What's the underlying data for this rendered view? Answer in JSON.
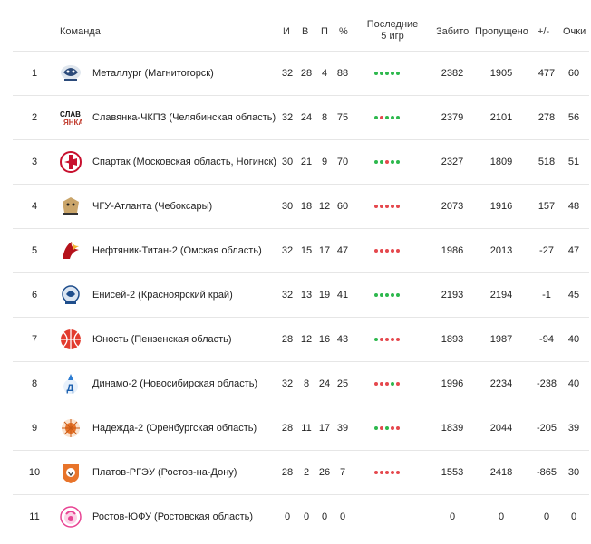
{
  "header": {
    "team": "Команда",
    "games": "И",
    "wins": "В",
    "losses": "П",
    "pct": "%",
    "last5_line1": "Последние",
    "last5_line2": "5 игр",
    "scored": "Забито",
    "conceded": "Пропущено",
    "diff": "+/-",
    "points": "Очки"
  },
  "colors": {
    "win": "#2db84d",
    "loss": "#e5484d"
  },
  "rows": [
    {
      "rank": "1",
      "team": "Металлург (Магнитогорск)",
      "logo": "metallurg-logo",
      "g": "32",
      "w": "28",
      "l": "4",
      "pct": "88",
      "last5": [
        "W",
        "W",
        "W",
        "W",
        "W"
      ],
      "scored": "2382",
      "conceded": "1905",
      "diff": "477",
      "pts": "60"
    },
    {
      "rank": "2",
      "team": "Славянка-ЧКПЗ (Челябинская область)",
      "logo": "slavyanka-logo",
      "g": "32",
      "w": "24",
      "l": "8",
      "pct": "75",
      "last5": [
        "W",
        "L",
        "W",
        "W",
        "W"
      ],
      "scored": "2379",
      "conceded": "2101",
      "diff": "278",
      "pts": "56"
    },
    {
      "rank": "3",
      "team": "Спартак (Московская область, Ногинск)",
      "logo": "spartak-logo",
      "g": "30",
      "w": "21",
      "l": "9",
      "pct": "70",
      "last5": [
        "W",
        "W",
        "L",
        "W",
        "W"
      ],
      "scored": "2327",
      "conceded": "1809",
      "diff": "518",
      "pts": "51"
    },
    {
      "rank": "4",
      "team": "ЧГУ-Атланта (Чебоксары)",
      "logo": "atlanta-logo",
      "g": "30",
      "w": "18",
      "l": "12",
      "pct": "60",
      "last5": [
        "L",
        "L",
        "L",
        "L",
        "L"
      ],
      "scored": "2073",
      "conceded": "1916",
      "diff": "157",
      "pts": "48"
    },
    {
      "rank": "5",
      "team": "Нефтяник-Титан-2 (Омская область)",
      "logo": "neftyanik-logo",
      "g": "32",
      "w": "15",
      "l": "17",
      "pct": "47",
      "last5": [
        "L",
        "L",
        "L",
        "L",
        "L"
      ],
      "scored": "1986",
      "conceded": "2013",
      "diff": "-27",
      "pts": "47"
    },
    {
      "rank": "6",
      "team": "Енисей-2 (Красноярский край)",
      "logo": "enisey-logo",
      "g": "32",
      "w": "13",
      "l": "19",
      "pct": "41",
      "last5": [
        "W",
        "W",
        "W",
        "W",
        "W"
      ],
      "scored": "2193",
      "conceded": "2194",
      "diff": "-1",
      "pts": "45"
    },
    {
      "rank": "7",
      "team": "Юность (Пензенская область)",
      "logo": "yunost-logo",
      "g": "28",
      "w": "12",
      "l": "16",
      "pct": "43",
      "last5": [
        "W",
        "L",
        "L",
        "L",
        "L"
      ],
      "scored": "1893",
      "conceded": "1987",
      "diff": "-94",
      "pts": "40"
    },
    {
      "rank": "8",
      "team": "Динамо-2 (Новосибирская область)",
      "logo": "dinamo-logo",
      "g": "32",
      "w": "8",
      "l": "24",
      "pct": "25",
      "last5": [
        "L",
        "L",
        "L",
        "W",
        "L"
      ],
      "scored": "1996",
      "conceded": "2234",
      "diff": "-238",
      "pts": "40"
    },
    {
      "rank": "9",
      "team": "Надежда-2 (Оренбургская область)",
      "logo": "nadezhda-logo",
      "g": "28",
      "w": "11",
      "l": "17",
      "pct": "39",
      "last5": [
        "W",
        "L",
        "W",
        "L",
        "L"
      ],
      "scored": "1839",
      "conceded": "2044",
      "diff": "-205",
      "pts": "39"
    },
    {
      "rank": "10",
      "team": "Платов-РГЭУ (Ростов-на-Дону)",
      "logo": "platov-logo",
      "g": "28",
      "w": "2",
      "l": "26",
      "pct": "7",
      "last5": [
        "L",
        "L",
        "L",
        "L",
        "L"
      ],
      "scored": "1553",
      "conceded": "2418",
      "diff": "-865",
      "pts": "30"
    },
    {
      "rank": "11",
      "team": "Ростов-ЮФУ (Ростовская область)",
      "logo": "rostov-logo",
      "g": "0",
      "w": "0",
      "l": "0",
      "pct": "0",
      "last5": [],
      "scored": "0",
      "conceded": "0",
      "diff": "0",
      "pts": "0"
    }
  ]
}
